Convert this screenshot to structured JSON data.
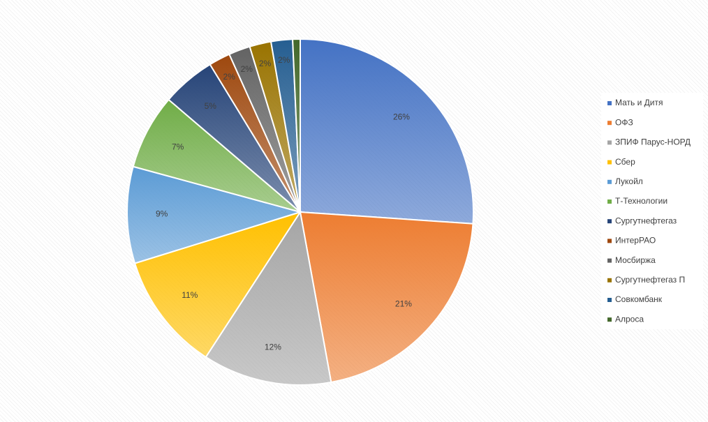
{
  "chart_data": {
    "type": "pie",
    "categories": [
      "Мать и Дитя",
      "ОФЗ",
      "ЗПИФ Парус-НОРД",
      "Сбер",
      "Лукойл",
      "Т-Технологии",
      "Сургутнефтегаз",
      "ИнтерРАО",
      "Мосбиржа",
      "Сургутнефтегаз П",
      "Совкомбанк",
      "Алроса"
    ],
    "values": [
      26,
      21,
      12,
      11,
      9,
      7,
      5,
      2,
      2,
      2,
      2,
      0.7
    ],
    "value_labels": [
      "26%",
      "21%",
      "12%",
      "11%",
      "9%",
      "7%",
      "5%",
      "2%",
      "2%",
      "2%",
      "2%",
      null
    ],
    "colors": [
      "#4472c4",
      "#ed7d31",
      "#a5a5a5",
      "#ffc000",
      "#5b9bd5",
      "#70ad47",
      "#264478",
      "#9e480e",
      "#636363",
      "#997300",
      "#255e91",
      "#43682b"
    ],
    "legend": "right"
  }
}
